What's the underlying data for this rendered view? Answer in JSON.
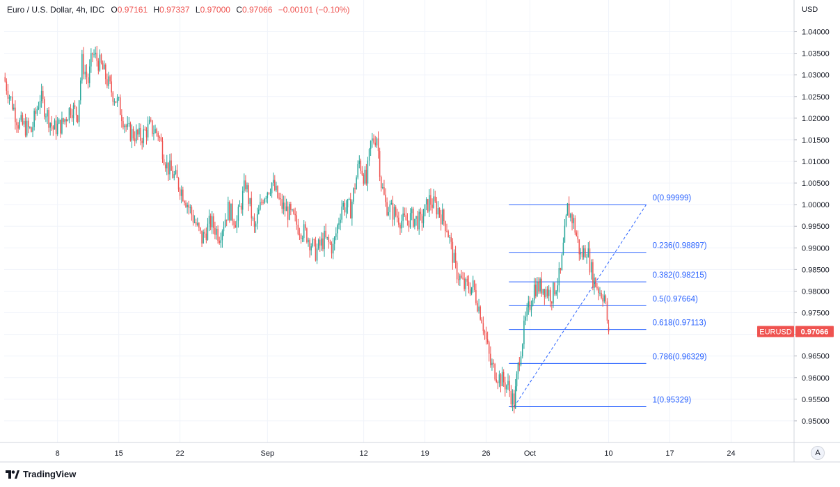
{
  "header": {
    "symbol": "Euro / U.S. Dollar, 4h, IDC",
    "o_label": "O",
    "o_value": "0.97161",
    "h_label": "H",
    "h_value": "0.97337",
    "l_label": "L",
    "l_value": "0.97000",
    "c_label": "C",
    "c_value": "0.97066",
    "change": "−0.00101 (−0.10%)"
  },
  "chart_data": {
    "type": "candlestick",
    "title": "Euro / U.S. Dollar, 4h, IDC",
    "currency_label": "USD",
    "price_label": {
      "symbol": "EURUSD",
      "value": "0.97066",
      "price": 0.97066
    },
    "ylim": [
      0.945,
      1.0425
    ],
    "y_ticks": [
      "0.95000",
      "0.95500",
      "0.96000",
      "0.96500",
      "0.97000",
      "0.97500",
      "0.98000",
      "0.98500",
      "0.99000",
      "0.99500",
      "1.00000",
      "1.00500",
      "1.01000",
      "1.01500",
      "1.02000",
      "1.02500",
      "1.03000",
      "1.03500",
      "1.04000"
    ],
    "x_ticks": [
      {
        "label": "8",
        "day": 8
      },
      {
        "label": "15",
        "day": 15
      },
      {
        "label": "22",
        "day": 22
      },
      {
        "label": "Sep",
        "day": 32
      },
      {
        "label": "12",
        "day": 43
      },
      {
        "label": "19",
        "day": 50
      },
      {
        "label": "26",
        "day": 57
      },
      {
        "label": "Oct",
        "day": 62
      },
      {
        "label": "10",
        "day": 71
      },
      {
        "label": "17",
        "day": 78
      },
      {
        "label": "24",
        "day": 85
      }
    ],
    "xlim_days": [
      1.9,
      92.2
    ],
    "colors": {
      "up": "#26a69a",
      "down": "#ef5350",
      "fib": "#2962ff",
      "grid": "#f0f3fa"
    },
    "closes": [
      [
        2.0,
        1.0285
      ],
      [
        3.5,
        1.019
      ],
      [
        5.0,
        1.017
      ],
      [
        6.0,
        1.025
      ],
      [
        7.5,
        1.0175
      ],
      [
        8.5,
        1.0185
      ],
      [
        9.5,
        1.0225
      ],
      [
        10.3,
        1.021
      ],
      [
        10.8,
        1.033
      ],
      [
        11.5,
        1.0285
      ],
      [
        12.0,
        1.035
      ],
      [
        13.0,
        1.032
      ],
      [
        14.0,
        1.027
      ],
      [
        15.0,
        1.023
      ],
      [
        16.0,
        1.017
      ],
      [
        17.5,
        1.0155
      ],
      [
        18.5,
        1.018
      ],
      [
        19.5,
        1.0165
      ],
      [
        20.5,
        1.009
      ],
      [
        21.5,
        1.006
      ],
      [
        22.5,
        1.002
      ],
      [
        23.5,
        0.997
      ],
      [
        24.5,
        0.992
      ],
      [
        25.5,
        0.996
      ],
      [
        26.5,
        0.993
      ],
      [
        27.5,
        0.999
      ],
      [
        28.5,
        0.996
      ],
      [
        29.5,
        1.005
      ],
      [
        30.5,
        0.994
      ],
      [
        31.5,
        1.002
      ],
      [
        32.5,
        1.005
      ],
      [
        33.5,
        1.0
      ],
      [
        34.5,
        0.998
      ],
      [
        35.5,
        0.995
      ],
      [
        36.5,
        0.993
      ],
      [
        37.5,
        0.989
      ],
      [
        38.5,
        0.992
      ],
      [
        39.5,
        0.99
      ],
      [
        40.5,
        1.0
      ],
      [
        41.5,
        0.999
      ],
      [
        42.5,
        1.01
      ],
      [
        43.3,
        1.005
      ],
      [
        43.8,
        1.014
      ],
      [
        44.5,
        1.016
      ],
      [
        45.0,
        1.005
      ],
      [
        45.5,
        1.0
      ],
      [
        46.5,
        0.998
      ],
      [
        47.5,
        0.996
      ],
      [
        48.5,
        0.997
      ],
      [
        49.5,
        0.996
      ],
      [
        50.5,
        1.001
      ],
      [
        51.5,
        0.999
      ],
      [
        52.5,
        0.995
      ],
      [
        53.5,
        0.985
      ],
      [
        54.5,
        0.981
      ],
      [
        55.5,
        0.981
      ],
      [
        56.5,
        0.974
      ],
      [
        57.5,
        0.963
      ],
      [
        58.5,
        0.96
      ],
      [
        59.5,
        0.958
      ],
      [
        60.2,
        0.954
      ],
      [
        60.8,
        0.965
      ],
      [
        61.5,
        0.973
      ],
      [
        62.5,
        0.981
      ],
      [
        63.5,
        0.981
      ],
      [
        64.5,
        0.979
      ],
      [
        65.5,
        0.984
      ],
      [
        66.3,
        0.999
      ],
      [
        67.0,
        0.996
      ],
      [
        67.8,
        0.988
      ],
      [
        68.5,
        0.99
      ],
      [
        69.2,
        0.983
      ],
      [
        70.0,
        0.98
      ],
      [
        70.5,
        0.979
      ],
      [
        71.0,
        0.9707
      ]
    ],
    "fibonacci": {
      "levels": [
        {
          "ratio": "0",
          "price": 0.99999,
          "label": "0(0.99999)"
        },
        {
          "ratio": "0.236",
          "price": 0.98897,
          "label": "0.236(0.98897)"
        },
        {
          "ratio": "0.382",
          "price": 0.98215,
          "label": "0.382(0.98215)"
        },
        {
          "ratio": "0.5",
          "price": 0.97664,
          "label": "0.5(0.97664)"
        },
        {
          "ratio": "0.618",
          "price": 0.97113,
          "label": "0.618(0.97113)"
        },
        {
          "ratio": "0.786",
          "price": 0.96329,
          "label": "0.786(0.96329)"
        },
        {
          "ratio": "1",
          "price": 0.95329,
          "label": "1(0.95329)"
        }
      ],
      "start_day": 59.6,
      "end_day": 75.3,
      "trend_from": {
        "day": 60.2,
        "price": 0.95329
      },
      "trend_to": {
        "day": 75.3,
        "price": 0.99999
      }
    }
  },
  "footer": {
    "brand": "TradingView",
    "logo_icon": "tradingview-logo-icon"
  },
  "controls": {
    "auto_scale_label": "A"
  }
}
